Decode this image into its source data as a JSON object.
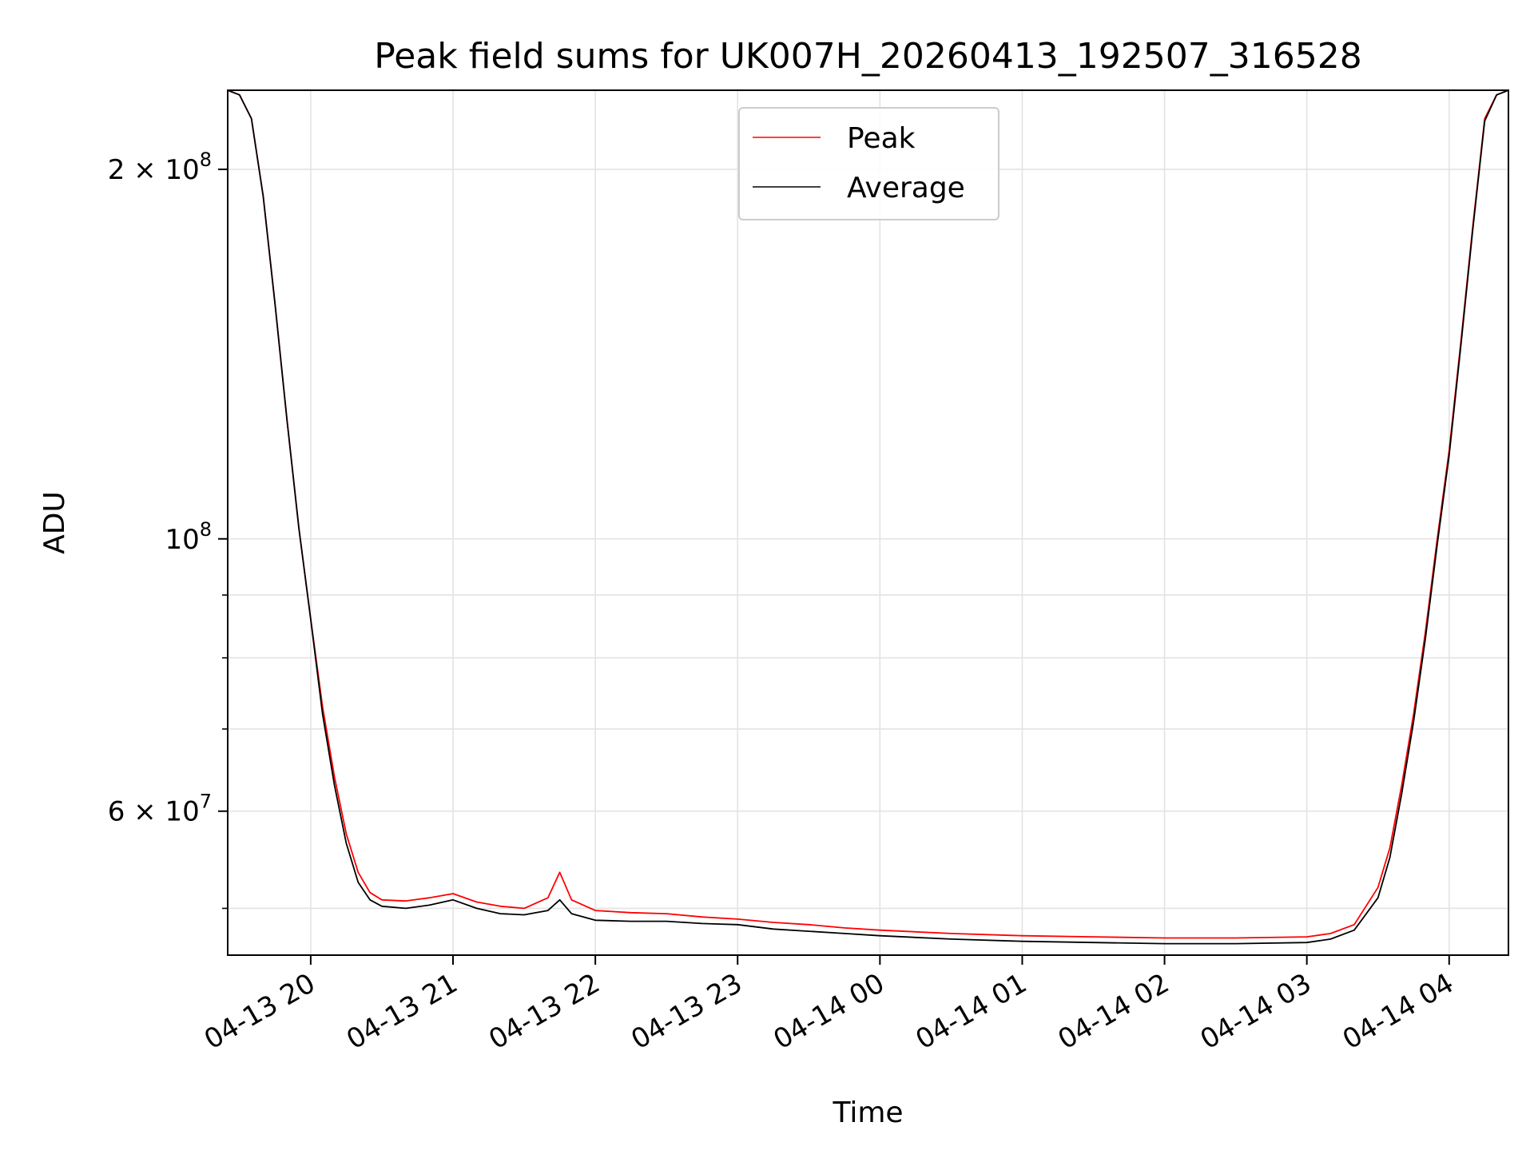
{
  "chart_data": {
    "type": "line",
    "title": "Peak field sums for UK007H_20260413_192507_316528",
    "xlabel": "Time",
    "ylabel": "ADU",
    "yscale": "log",
    "ylim": [
      45800000,
      232000000
    ],
    "xlim": [
      "04-13 19:25",
      "04-14 04:25"
    ],
    "x_ticks": [
      "04-13 20",
      "04-13 21",
      "04-13 22",
      "04-13 23",
      "04-14 00",
      "04-14 01",
      "04-14 02",
      "04-14 03",
      "04-14 04"
    ],
    "y_tick_labels": [
      {
        "value": 200000000,
        "mantissa": "2",
        "exponent": "8"
      },
      {
        "value": 100000000,
        "mantissa": "",
        "exponent": "8"
      },
      {
        "value": 60000000,
        "mantissa": "6",
        "exponent": "7"
      }
    ],
    "y_minor_ticks": [
      50000000,
      70000000,
      80000000,
      90000000
    ],
    "grid": true,
    "legend": {
      "position": "upper center",
      "entries": [
        "Peak",
        "Average"
      ]
    },
    "series": [
      {
        "name": "Peak",
        "color": "#ff0000",
        "x": [
          "04-13 19:25",
          "04-13 19:30",
          "04-13 19:35",
          "04-13 19:40",
          "04-13 19:45",
          "04-13 19:50",
          "04-13 19:55",
          "04-13 20:00",
          "04-13 20:05",
          "04-13 20:10",
          "04-13 20:15",
          "04-13 20:20",
          "04-13 20:25",
          "04-13 20:30",
          "04-13 20:40",
          "04-13 20:50",
          "04-13 21:00",
          "04-13 21:10",
          "04-13 21:20",
          "04-13 21:30",
          "04-13 21:40",
          "04-13 21:45",
          "04-13 21:50",
          "04-13 22:00",
          "04-13 22:15",
          "04-13 22:30",
          "04-13 22:45",
          "04-13 23:00",
          "04-13 23:15",
          "04-13 23:30",
          "04-13 23:45",
          "04-14 00:00",
          "04-14 00:30",
          "04-14 01:00",
          "04-14 01:30",
          "04-14 02:00",
          "04-14 02:30",
          "04-14 03:00",
          "04-14 03:10",
          "04-14 03:20",
          "04-14 03:30",
          "04-14 03:35",
          "04-14 03:40",
          "04-14 03:45",
          "04-14 03:50",
          "04-14 03:55",
          "04-14 04:00",
          "04-14 04:05",
          "04-14 04:10",
          "04-14 04:15",
          "04-14 04:20",
          "04-14 04:25"
        ],
        "y": [
          232000000,
          230000000,
          220000000,
          190000000,
          155000000,
          125000000,
          102000000,
          86000000,
          73000000,
          64000000,
          57500000,
          53500000,
          51500000,
          50800000,
          50700000,
          51000000,
          51400000,
          50600000,
          50200000,
          50000000,
          51000000,
          53500000,
          50800000,
          49800000,
          49600000,
          49500000,
          49200000,
          49000000,
          48700000,
          48500000,
          48200000,
          48000000,
          47700000,
          47500000,
          47400000,
          47300000,
          47300000,
          47400000,
          47700000,
          48500000,
          52000000,
          56000000,
          63000000,
          72000000,
          84000000,
          100000000,
          118000000,
          145000000,
          180000000,
          220000000,
          230000000,
          232000000
        ]
      },
      {
        "name": "Average",
        "color": "#000000",
        "x": [
          "04-13 19:25",
          "04-13 19:30",
          "04-13 19:35",
          "04-13 19:40",
          "04-13 19:45",
          "04-13 19:50",
          "04-13 19:55",
          "04-13 20:00",
          "04-13 20:05",
          "04-13 20:10",
          "04-13 20:15",
          "04-13 20:20",
          "04-13 20:25",
          "04-13 20:30",
          "04-13 20:40",
          "04-13 20:50",
          "04-13 21:00",
          "04-13 21:10",
          "04-13 21:20",
          "04-13 21:30",
          "04-13 21:40",
          "04-13 21:45",
          "04-13 21:50",
          "04-13 22:00",
          "04-13 22:15",
          "04-13 22:30",
          "04-13 22:45",
          "04-13 23:00",
          "04-13 23:15",
          "04-13 23:30",
          "04-13 23:45",
          "04-14 00:00",
          "04-14 00:30",
          "04-14 01:00",
          "04-14 01:30",
          "04-14 02:00",
          "04-14 02:30",
          "04-14 03:00",
          "04-14 03:10",
          "04-14 03:20",
          "04-14 03:30",
          "04-14 03:35",
          "04-14 03:40",
          "04-14 03:45",
          "04-14 03:50",
          "04-14 03:55",
          "04-14 04:00",
          "04-14 04:05",
          "04-14 04:10",
          "04-14 04:15",
          "04-14 04:20",
          "04-14 04:25"
        ],
        "y": [
          232000000,
          230000000,
          220000000,
          190000000,
          155000000,
          125000000,
          102000000,
          86000000,
          72000000,
          63000000,
          56500000,
          52500000,
          50800000,
          50200000,
          50000000,
          50300000,
          50800000,
          50000000,
          49500000,
          49400000,
          49800000,
          50800000,
          49500000,
          48900000,
          48800000,
          48800000,
          48600000,
          48500000,
          48100000,
          47900000,
          47700000,
          47500000,
          47200000,
          47000000,
          46900000,
          46800000,
          46800000,
          46900000,
          47200000,
          48000000,
          51000000,
          55000000,
          62000000,
          71000000,
          83000000,
          99000000,
          117000000,
          144000000,
          179000000,
          219000000,
          230000000,
          232000000
        ]
      }
    ]
  }
}
